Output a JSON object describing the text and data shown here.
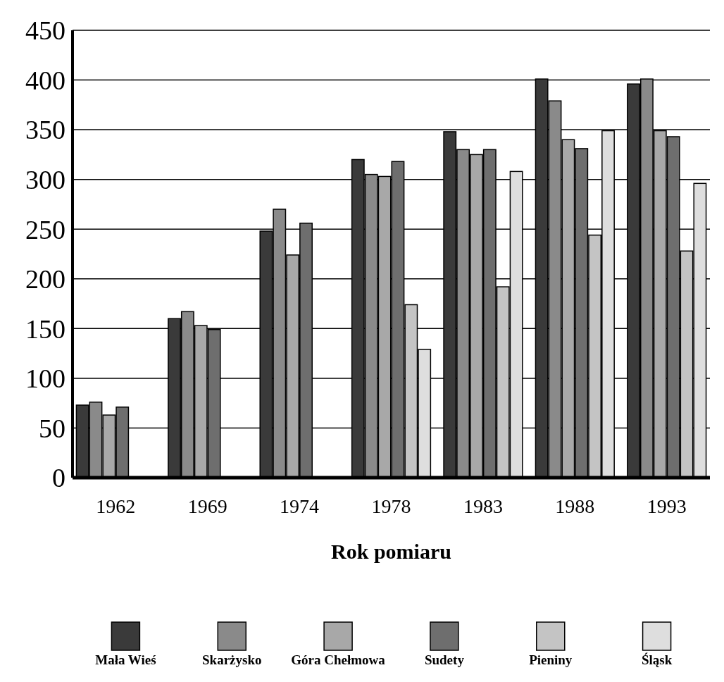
{
  "chart_data": {
    "type": "bar",
    "xlabel": "Rok pomiaru",
    "categories": [
      "1962",
      "1969",
      "1974",
      "1978",
      "1983",
      "1988",
      "1993"
    ],
    "series": [
      {
        "name": "Mała Wieś",
        "color": "#3a3a3a",
        "values": [
          73,
          160,
          248,
          320,
          348,
          401,
          396
        ]
      },
      {
        "name": "Skarżysko",
        "color": "#8a8a8a",
        "values": [
          76,
          167,
          270,
          305,
          330,
          379,
          401
        ]
      },
      {
        "name": "Góra Chełmowa",
        "color": "#a8a8a8",
        "values": [
          63,
          153,
          224,
          303,
          325,
          340,
          349
        ]
      },
      {
        "name": "Sudety",
        "color": "#6e6e6e",
        "values": [
          71,
          149,
          256,
          318,
          330,
          331,
          343
        ]
      },
      {
        "name": "Pieniny",
        "color": "#c4c4c4",
        "values": [
          null,
          null,
          null,
          174,
          192,
          244,
          228
        ]
      },
      {
        "name": "Śląsk",
        "color": "#dedede",
        "values": [
          null,
          null,
          null,
          129,
          308,
          349,
          296
        ]
      }
    ],
    "ylim": [
      0,
      450
    ],
    "yticks": [
      0,
      50,
      100,
      150,
      200,
      250,
      300,
      350,
      400,
      450
    ],
    "grid": "y",
    "legend": "bottom"
  }
}
